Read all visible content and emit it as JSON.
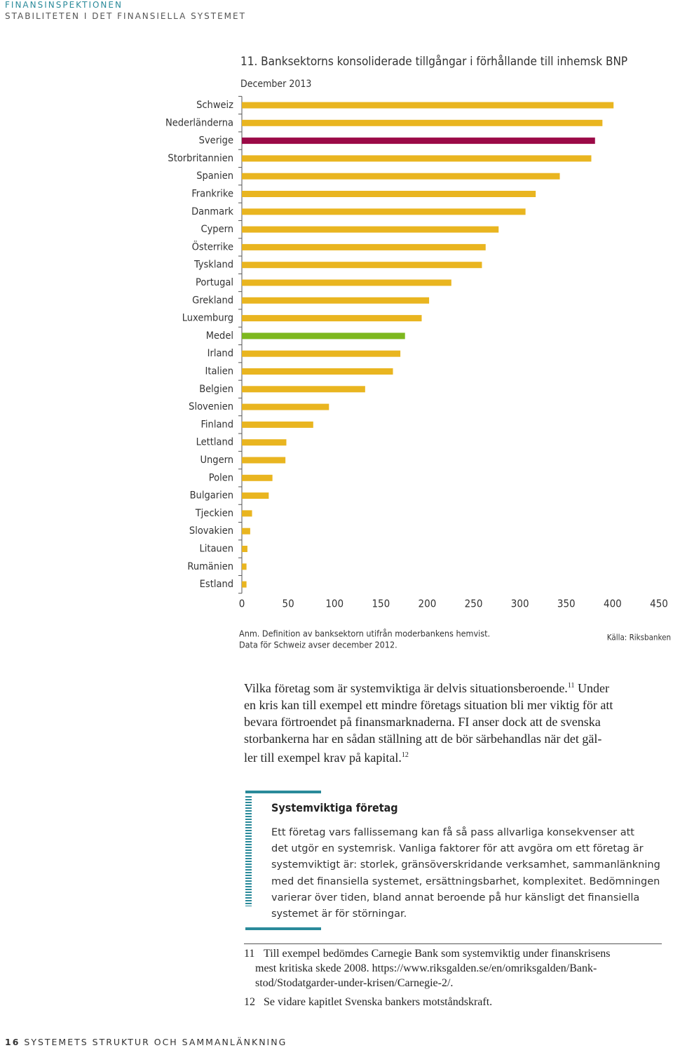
{
  "header": {
    "publisher": "FINANSINSPEKTIONEN",
    "report": "STABILITETEN I DET FINANSIELLA SYSTEMET"
  },
  "chart_data": {
    "type": "bar",
    "orientation": "horizontal",
    "title": "11. Banksektorns konsoliderade tillgångar i förhållande till inhemsk BNP",
    "subtitle": "December 2013",
    "categories": [
      "Schweiz",
      "Nederländerna",
      "Sverige",
      "Storbritannien",
      "Spanien",
      "Frankrike",
      "Danmark",
      "Cypern",
      "Österrike",
      "Tyskland",
      "Portugal",
      "Grekland",
      "Luxemburg",
      "Medel",
      "Irland",
      "Italien",
      "Belgien",
      "Slovenien",
      "Finland",
      "Lettland",
      "Ungern",
      "Polen",
      "Bulgarien",
      "Tjeckien",
      "Slovakien",
      "Litauen",
      "Rumänien",
      "Estland"
    ],
    "values": [
      401,
      389,
      381,
      377,
      343,
      317,
      306,
      277,
      263,
      259,
      226,
      202,
      194,
      176,
      171,
      163,
      133,
      94,
      77,
      48,
      47,
      33,
      29,
      11,
      9,
      6,
      5,
      5
    ],
    "colors": [
      "#e9b520",
      "#e9b520",
      "#9b0a47",
      "#e9b520",
      "#e9b520",
      "#e9b520",
      "#e9b520",
      "#e9b520",
      "#e9b520",
      "#e9b520",
      "#e9b520",
      "#e9b520",
      "#e9b520",
      "#7db81f",
      "#e9b520",
      "#e9b520",
      "#e9b520",
      "#e9b520",
      "#e9b520",
      "#e9b520",
      "#e9b520",
      "#e9b520",
      "#e9b520",
      "#e9b520",
      "#e9b520",
      "#e9b520",
      "#e9b520",
      "#e9b520"
    ],
    "xlim": [
      0,
      450
    ],
    "xticks": [
      0,
      50,
      100,
      150,
      200,
      250,
      300,
      350,
      400,
      450
    ],
    "note": [
      "Anm. Definition av banksektorn utifrån moderbankens hemvist.",
      "Data för Schweiz avser december 2012."
    ],
    "source": "Källa: Riksbanken"
  },
  "body": {
    "lines": [
      [
        "Vilka företag som är systemviktiga är delvis situationsberoende.",
        "11",
        " Under"
      ],
      [
        "en kris kan till exempel ett mindre företags situation bli mer viktig för att"
      ],
      [
        "bevara förtroendet på finansmarknaderna. FI anser dock att de svenska"
      ],
      [
        "storbankerna har en sådan ställning att de bör särbehandlas när det gäl-"
      ],
      [
        "ler till exempel krav på kapital.",
        "12"
      ]
    ]
  },
  "box": {
    "title": "Systemviktiga företag",
    "lines": [
      "Ett företag vars fallissemang kan få så pass allvarliga konsekvenser att",
      "det utgör en systemrisk. Vanliga faktorer för att avgöra om ett företag är",
      "systemviktigt är: storlek, gränsöverskridande verksamhet, sammanlänkning",
      "med det finansiella systemet, ersättningsbarhet, komplexitet. Bedömningen",
      "varierar över tiden, bland annat beroende på hur känsligt det finansiella",
      "systemet är för störningar."
    ]
  },
  "footnotes": [
    {
      "number": "11",
      "lines": [
        "Till exempel bedömdes Carnegie Bank som systemviktig under finanskrisens",
        "mest kritiska skede 2008. https://www.riksgalden.se/en/omriksgalden/Bank-",
        "stod/Stodatgarder-under-krisen/Carnegie-2/."
      ]
    },
    {
      "number": "12",
      "lines": [
        "Se vidare kapitlet Svenska bankers motståndskraft."
      ]
    }
  ],
  "footer": {
    "page": "16",
    "section": "SYSTEMETS STRUKTUR OCH SAMMANLÄNKNING"
  }
}
